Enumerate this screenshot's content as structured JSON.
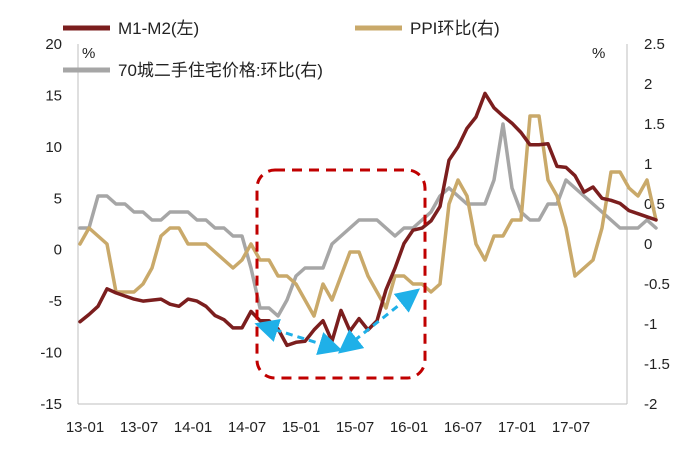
{
  "chart_data": {
    "type": "line",
    "title": "",
    "xlabel": "",
    "ylabel_left": "%",
    "ylabel_right": "%",
    "ylim_left": [
      -15,
      20
    ],
    "ylim_right": [
      -2,
      2.5
    ],
    "yticks_left": [
      "20",
      "15",
      "10",
      "5",
      "0",
      "-5",
      "-10",
      "-15"
    ],
    "yticks_right": [
      "2.5",
      "2",
      "1.5",
      "1",
      "0.5",
      "0",
      "-0.5",
      "-1",
      "-1.5",
      "-2"
    ],
    "xticks": [
      "13-01",
      "13-07",
      "14-01",
      "14-07",
      "15-01",
      "15-07",
      "16-01",
      "16-07",
      "17-01",
      "17-07"
    ],
    "legend": [
      "M1-M2(左)",
      "PPI环比(右)",
      "70城二手住宅价格:环比(右)"
    ],
    "series": [
      {
        "name": "M1-M2(左)",
        "axis": "left",
        "color": "#7b1e1e",
        "x_start": "2013-01",
        "values": [
          -7.0,
          -6.3,
          -5.5,
          -3.8,
          -4.2,
          -4.5,
          -4.8,
          -5.0,
          -4.9,
          -4.8,
          -5.3,
          -5.5,
          -4.8,
          -5.0,
          -5.5,
          -6.4,
          -6.8,
          -7.6,
          -7.6,
          -6.0,
          -6.9,
          -6.9,
          -7.7,
          -9.3,
          -9.0,
          -8.9,
          -7.8,
          -6.9,
          -8.9,
          -5.9,
          -7.9,
          -6.7,
          -7.8,
          -6.9,
          -3.9,
          -1.8,
          0.6,
          1.9,
          2.1,
          2.8,
          4.2,
          8.7,
          10.0,
          11.8,
          12.9,
          15.2,
          13.8,
          13.0,
          12.3,
          11.4,
          10.2,
          10.2,
          10.3,
          8.1,
          8.0,
          7.2,
          5.6,
          6.1,
          5.0,
          4.8,
          4.5,
          3.8,
          3.5,
          3.2,
          2.9
        ]
      },
      {
        "name": "PPI环比(右)",
        "axis": "right",
        "color": "#c9a96a",
        "x_start": "2013-01",
        "values": [
          0.0,
          0.2,
          0.1,
          0.0,
          -0.6,
          -0.6,
          -0.6,
          -0.5,
          -0.3,
          0.1,
          0.2,
          0.2,
          0.0,
          0.0,
          0.0,
          -0.1,
          -0.2,
          -0.3,
          -0.2,
          0.0,
          -0.2,
          -0.2,
          -0.4,
          -0.4,
          -0.5,
          -0.7,
          -0.9,
          -0.5,
          -0.7,
          -0.4,
          -0.1,
          -0.1,
          -0.4,
          -0.6,
          -0.8,
          -0.4,
          -0.4,
          -0.5,
          -0.5,
          -0.6,
          -0.5,
          0.5,
          0.8,
          0.6,
          0.0,
          -0.2,
          0.1,
          0.1,
          0.3,
          0.3,
          1.6,
          1.6,
          0.8,
          0.6,
          0.2,
          -0.4,
          -0.3,
          -0.2,
          0.2,
          0.9,
          0.9,
          0.7,
          0.6,
          0.8,
          0.3
        ]
      },
      {
        "name": "70城二手住宅价格:环比(右)",
        "axis": "right",
        "color": "#a6a6a6",
        "x_start": "2013-01",
        "values": [
          0.2,
          0.2,
          0.6,
          0.6,
          0.5,
          0.5,
          0.4,
          0.4,
          0.3,
          0.3,
          0.4,
          0.4,
          0.4,
          0.3,
          0.3,
          0.2,
          0.2,
          0.1,
          0.1,
          -0.3,
          -0.8,
          -0.8,
          -0.9,
          -0.7,
          -0.4,
          -0.3,
          -0.3,
          -0.3,
          0.0,
          0.1,
          0.2,
          0.3,
          0.3,
          0.3,
          0.2,
          0.1,
          0.2,
          0.2,
          0.3,
          0.4,
          0.6,
          0.7,
          0.6,
          0.5,
          0.5,
          0.5,
          0.8,
          1.5,
          0.7,
          0.4,
          0.3,
          0.3,
          0.5,
          0.5,
          0.8,
          0.7,
          0.6,
          0.5,
          0.4,
          0.3,
          0.2,
          0.2,
          0.2,
          0.3,
          0.2
        ]
      }
    ],
    "annotations": [
      {
        "type": "dashed-rectangle",
        "color": "#c00000"
      },
      {
        "type": "dashed-double-arrow",
        "color": "#1fb0e8"
      }
    ]
  }
}
